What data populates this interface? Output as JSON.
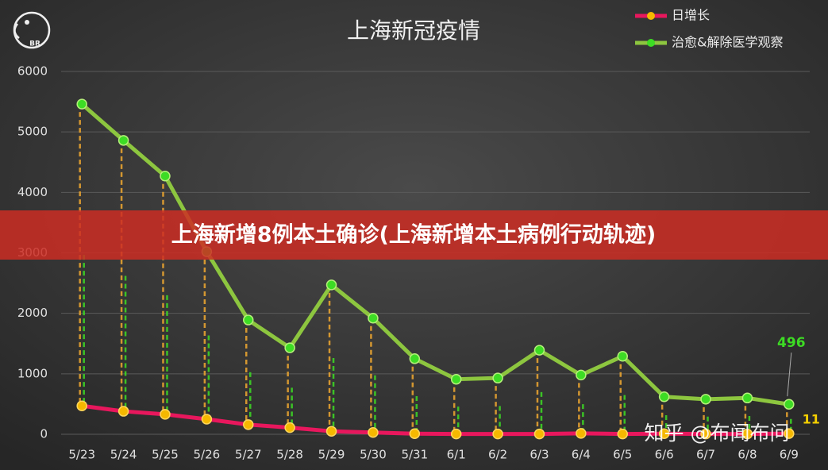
{
  "chart_data": {
    "type": "line",
    "title": "上海新冠疫情",
    "categories": [
      "5/23",
      "5/24",
      "5/25",
      "5/26",
      "5/27",
      "5/28",
      "5/29",
      "5/30",
      "5/31",
      "6/1",
      "6/2",
      "6/3",
      "6/4",
      "6/5",
      "6/6",
      "6/7",
      "6/8",
      "6/9"
    ],
    "series": [
      {
        "name": "日增长",
        "color": "#e8175d",
        "marker_color": "#f5b800",
        "values": [
          470,
          380,
          330,
          250,
          160,
          110,
          50,
          30,
          10,
          5,
          5,
          5,
          15,
          5,
          10,
          5,
          5,
          11
        ]
      },
      {
        "name": "治愈&解除医学观察",
        "color": "#8dc63f",
        "marker_color": "#3ddc24",
        "values": [
          5460,
          4860,
          4270,
          3020,
          1890,
          1430,
          2470,
          1920,
          1250,
          910,
          930,
          1390,
          980,
          1290,
          620,
          580,
          600,
          496
        ]
      }
    ],
    "ylim": [
      0,
      6000
    ],
    "yticks": [
      0,
      1000,
      2000,
      3000,
      4000,
      5000,
      6000
    ],
    "grid": true
  },
  "banner": "上海新增8例本土确诊(上海新增本土病例行动轨迹)",
  "watermark": "知乎 @布闻布问",
  "logo_text": "BR"
}
